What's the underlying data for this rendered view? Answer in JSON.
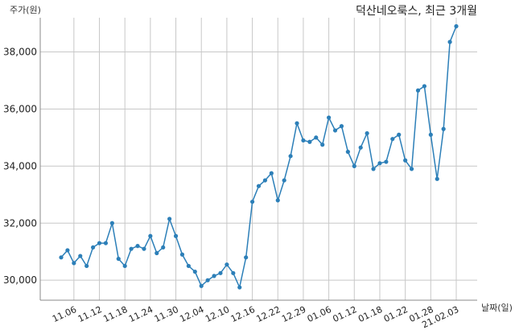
{
  "chart_data": {
    "type": "line",
    "title": "덕산네오룩스, 최근 3개월",
    "ylabel": "주가(원)",
    "xlabel": "날짜(일)",
    "xticks": [
      "11.06",
      "11.12",
      "11.18",
      "11.24",
      "11.30",
      "12.04",
      "12.10",
      "12.16",
      "12.22",
      "12.29",
      "01.06",
      "01.12",
      "01.18",
      "01.22",
      "01.28",
      "21.02.03"
    ],
    "xtick_index": [
      2,
      6,
      10,
      14,
      18,
      22,
      26,
      30,
      34,
      38,
      42,
      46,
      50,
      54,
      58,
      62
    ],
    "yticks": [
      30000,
      32000,
      34000,
      36000,
      38000
    ],
    "ylim": [
      29300,
      39200
    ],
    "grid": true,
    "values": [
      30800,
      31050,
      30600,
      30850,
      30500,
      31150,
      31300,
      31300,
      32000,
      30750,
      30500,
      31100,
      31200,
      31100,
      31550,
      30950,
      31150,
      32150,
      31550,
      30900,
      30500,
      30300,
      29800,
      30000,
      30150,
      30250,
      30550,
      30250,
      29750,
      30800,
      32750,
      33300,
      33500,
      33750,
      32800,
      33500,
      34350,
      35500,
      34900,
      34850,
      35000,
      34750,
      35700,
      35250,
      35400,
      34500,
      34000,
      34650,
      35150,
      33900,
      34100,
      34150,
      34950,
      35100,
      34200,
      33900,
      36650,
      36800,
      35100,
      33550,
      35300,
      38350,
      38900
    ]
  }
}
